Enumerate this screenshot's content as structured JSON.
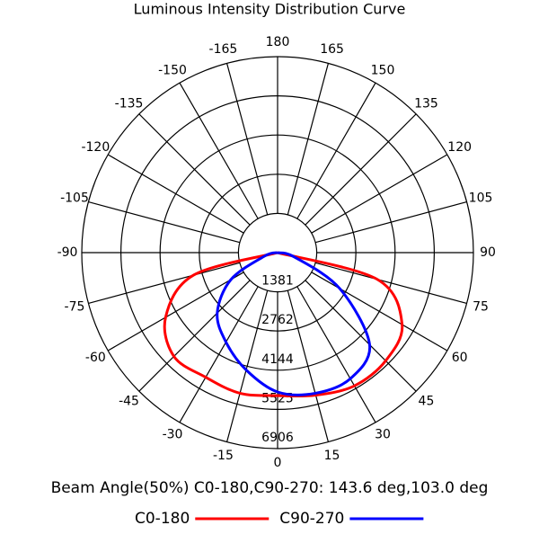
{
  "chart_data": {
    "type": "polar",
    "title": "Luminous Intensity Distribution Curve",
    "annotation": "Beam Angle(50%) C0-180,C90-270: 143.6 deg,103.0 deg",
    "x": [
      -90,
      -75,
      -60,
      -45,
      -30,
      -15,
      0,
      15,
      30,
      45,
      60,
      75,
      90
    ],
    "series": [
      {
        "name": "C0-180",
        "color": "#ff0000",
        "values": [
          0,
          3070,
          4560,
          5170,
          5070,
          5130,
          5040,
          5200,
          5420,
          5390,
          5070,
          3640,
          0
        ]
      },
      {
        "name": "C90-270",
        "color": "#0000ff",
        "values": [
          0,
          475,
          1900,
          3010,
          3640,
          4280,
          4910,
          5130,
          5130,
          4590,
          2530,
          630,
          0
        ]
      }
    ],
    "rlim": [
      0,
      6906
    ],
    "rticks": [
      1381,
      2762,
      4144,
      5525,
      6906
    ],
    "xticks": [
      0,
      15,
      30,
      45,
      60,
      75,
      90,
      105,
      120,
      135,
      150,
      165,
      180,
      -165,
      -150,
      -135,
      -120,
      -105,
      -90,
      -75,
      -60,
      -45,
      -30,
      -15
    ],
    "grid": true,
    "legend": "bottom"
  }
}
